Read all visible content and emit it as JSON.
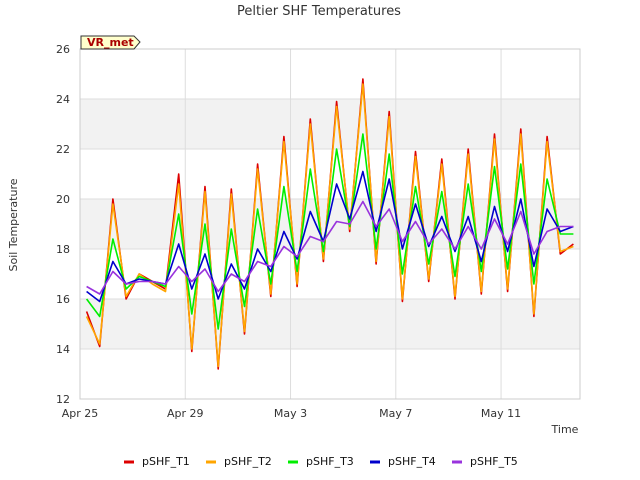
{
  "chart_data": {
    "type": "line",
    "title": "Peltier SHF Temperatures",
    "xlabel": "Time",
    "ylabel": "Soil Temperature",
    "badge": "VR_met",
    "xlim": [
      "2024-04-25",
      "2024-05-14"
    ],
    "ylim": [
      12,
      26
    ],
    "y_ticks": [
      12,
      14,
      16,
      18,
      20,
      22,
      24,
      26
    ],
    "x_ticks": [
      {
        "date": "2024-04-25",
        "label": "Apr 25"
      },
      {
        "date": "2024-04-29",
        "label": "Apr 29"
      },
      {
        "date": "2024-05-03",
        "label": "May 3"
      },
      {
        "date": "2024-05-07",
        "label": "May 7"
      },
      {
        "date": "2024-05-11",
        "label": "May 11"
      }
    ],
    "grid": true,
    "legend_position": "bottom",
    "series": [
      {
        "name": "pSHF_T1",
        "color": "#dd0000",
        "x": [
          "2024-04-25",
          "2024-04-25",
          "2024-04-26",
          "2024-04-26",
          "2024-04-27",
          "2024-04-27",
          "2024-04-28",
          "2024-04-28",
          "2024-04-29",
          "2024-04-29",
          "2024-04-30",
          "2024-04-30",
          "2024-05-01",
          "2024-05-01",
          "2024-05-02",
          "2024-05-02",
          "2024-05-03",
          "2024-05-03",
          "2024-05-04",
          "2024-05-04",
          "2024-05-05",
          "2024-05-05",
          "2024-05-06",
          "2024-05-06",
          "2024-05-07",
          "2024-05-07",
          "2024-05-08",
          "2024-05-08",
          "2024-05-09",
          "2024-05-09",
          "2024-05-10",
          "2024-05-10",
          "2024-05-11",
          "2024-05-11",
          "2024-05-12",
          "2024-05-12",
          "2024-05-13",
          "2024-05-13"
        ],
        "y": [
          15.5,
          14.1,
          20.0,
          16.0,
          17.0,
          16.7,
          16.4,
          21.0,
          13.9,
          20.5,
          13.2,
          20.4,
          14.6,
          21.4,
          16.1,
          22.5,
          16.5,
          23.2,
          17.5,
          23.9,
          18.7,
          24.8,
          17.4,
          23.5,
          15.9,
          21.9,
          16.7,
          21.6,
          16.0,
          22.0,
          16.2,
          22.6,
          16.3,
          22.8,
          15.3,
          22.5,
          17.8,
          18.2
        ]
      },
      {
        "name": "pSHF_T2",
        "color": "#ffa500",
        "x": [
          "2024-04-25",
          "2024-04-25",
          "2024-04-26",
          "2024-04-26",
          "2024-04-27",
          "2024-04-27",
          "2024-04-28",
          "2024-04-28",
          "2024-04-29",
          "2024-04-29",
          "2024-04-30",
          "2024-04-30",
          "2024-05-01",
          "2024-05-01",
          "2024-05-02",
          "2024-05-02",
          "2024-05-03",
          "2024-05-03",
          "2024-05-04",
          "2024-05-04",
          "2024-05-05",
          "2024-05-05",
          "2024-05-06",
          "2024-05-06",
          "2024-05-07",
          "2024-05-07",
          "2024-05-08",
          "2024-05-08",
          "2024-05-09",
          "2024-05-09",
          "2024-05-10",
          "2024-05-10",
          "2024-05-11",
          "2024-05-11",
          "2024-05-12",
          "2024-05-12",
          "2024-05-13",
          "2024-05-13"
        ],
        "y": [
          15.3,
          14.2,
          19.8,
          16.1,
          17.0,
          16.6,
          16.3,
          20.6,
          14.0,
          20.3,
          13.3,
          20.2,
          14.7,
          21.2,
          16.2,
          22.3,
          16.6,
          23.0,
          17.6,
          23.7,
          18.8,
          24.6,
          17.5,
          23.3,
          16.0,
          21.7,
          16.8,
          21.4,
          16.1,
          21.8,
          16.3,
          22.4,
          16.4,
          22.6,
          15.4,
          22.3,
          17.9,
          18.1
        ]
      },
      {
        "name": "pSHF_T3",
        "color": "#00ee00",
        "x": [
          "2024-04-25",
          "2024-04-25",
          "2024-04-26",
          "2024-04-26",
          "2024-04-27",
          "2024-04-27",
          "2024-04-28",
          "2024-04-28",
          "2024-04-29",
          "2024-04-29",
          "2024-04-30",
          "2024-04-30",
          "2024-05-01",
          "2024-05-01",
          "2024-05-02",
          "2024-05-02",
          "2024-05-03",
          "2024-05-03",
          "2024-05-04",
          "2024-05-04",
          "2024-05-05",
          "2024-05-05",
          "2024-05-06",
          "2024-05-06",
          "2024-05-07",
          "2024-05-07",
          "2024-05-08",
          "2024-05-08",
          "2024-05-09",
          "2024-05-09",
          "2024-05-10",
          "2024-05-10",
          "2024-05-11",
          "2024-05-11",
          "2024-05-12",
          "2024-05-12",
          "2024-05-13",
          "2024-05-13"
        ],
        "y": [
          16.0,
          15.3,
          18.4,
          16.4,
          16.9,
          16.7,
          16.5,
          19.4,
          15.4,
          19.0,
          14.8,
          18.8,
          15.7,
          19.6,
          16.6,
          20.5,
          17.1,
          21.2,
          17.9,
          22.0,
          18.9,
          22.6,
          18.0,
          21.8,
          17.0,
          20.5,
          17.4,
          20.3,
          16.9,
          20.6,
          17.1,
          21.3,
          17.2,
          21.4,
          16.6,
          20.8,
          18.6,
          18.6
        ]
      },
      {
        "name": "pSHF_T4",
        "color": "#0000cc",
        "x": [
          "2024-04-25",
          "2024-04-25",
          "2024-04-26",
          "2024-04-26",
          "2024-04-27",
          "2024-04-27",
          "2024-04-28",
          "2024-04-28",
          "2024-04-29",
          "2024-04-29",
          "2024-04-30",
          "2024-04-30",
          "2024-05-01",
          "2024-05-01",
          "2024-05-02",
          "2024-05-02",
          "2024-05-03",
          "2024-05-03",
          "2024-05-04",
          "2024-05-04",
          "2024-05-05",
          "2024-05-05",
          "2024-05-06",
          "2024-05-06",
          "2024-05-07",
          "2024-05-07",
          "2024-05-08",
          "2024-05-08",
          "2024-05-09",
          "2024-05-09",
          "2024-05-10",
          "2024-05-10",
          "2024-05-11",
          "2024-05-11",
          "2024-05-12",
          "2024-05-12",
          "2024-05-13",
          "2024-05-13"
        ],
        "y": [
          16.3,
          15.9,
          17.5,
          16.6,
          16.8,
          16.7,
          16.6,
          18.2,
          16.4,
          17.8,
          16.0,
          17.4,
          16.4,
          18.0,
          17.1,
          18.7,
          17.6,
          19.5,
          18.3,
          20.6,
          19.2,
          21.1,
          18.7,
          20.8,
          18.0,
          19.8,
          18.1,
          19.3,
          17.9,
          19.3,
          17.5,
          19.7,
          17.9,
          20.0,
          17.3,
          19.6,
          18.7,
          18.9
        ]
      },
      {
        "name": "pSHF_T5",
        "color": "#9933dd",
        "x": [
          "2024-04-25",
          "2024-04-25",
          "2024-04-26",
          "2024-04-26",
          "2024-04-27",
          "2024-04-27",
          "2024-04-28",
          "2024-04-28",
          "2024-04-29",
          "2024-04-29",
          "2024-04-30",
          "2024-04-30",
          "2024-05-01",
          "2024-05-01",
          "2024-05-02",
          "2024-05-02",
          "2024-05-03",
          "2024-05-03",
          "2024-05-04",
          "2024-05-04",
          "2024-05-05",
          "2024-05-05",
          "2024-05-06",
          "2024-05-06",
          "2024-05-07",
          "2024-05-07",
          "2024-05-08",
          "2024-05-08",
          "2024-05-09",
          "2024-05-09",
          "2024-05-10",
          "2024-05-10",
          "2024-05-11",
          "2024-05-11",
          "2024-05-12",
          "2024-05-12",
          "2024-05-13",
          "2024-05-13"
        ],
        "y": [
          16.5,
          16.2,
          17.1,
          16.6,
          16.7,
          16.7,
          16.6,
          17.3,
          16.7,
          17.2,
          16.3,
          17.0,
          16.7,
          17.5,
          17.3,
          18.1,
          17.7,
          18.5,
          18.3,
          19.1,
          19.0,
          19.9,
          18.9,
          19.6,
          18.3,
          19.1,
          18.2,
          18.8,
          18.0,
          18.9,
          18.0,
          19.2,
          18.2,
          19.5,
          17.8,
          18.7,
          18.9,
          18.9
        ]
      }
    ]
  }
}
